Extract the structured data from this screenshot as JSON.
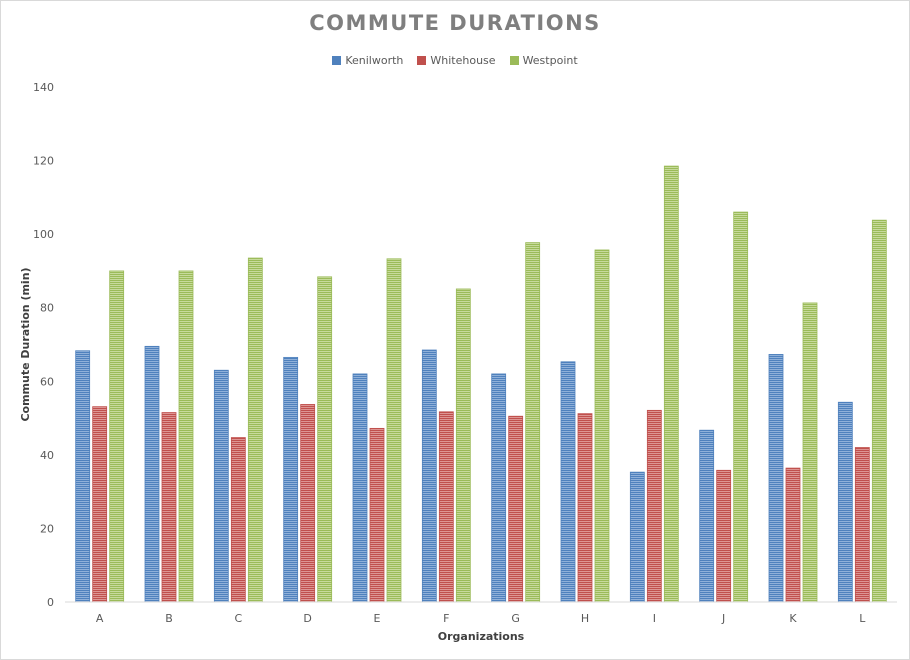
{
  "colors": {
    "Kenilworth": "#4f81bd",
    "Whitehouse": "#c0504d",
    "Westpoint": "#9bbb59"
  },
  "chart_data": {
    "type": "bar",
    "title": "COMMUTE DURATIONS",
    "xlabel": "Organizations",
    "ylabel": "Commute Duration (min)",
    "ylim": [
      0,
      140
    ],
    "yticks": [
      0,
      20,
      40,
      60,
      80,
      100,
      120,
      140
    ],
    "grid": false,
    "legend_position": "top",
    "categories": [
      "A",
      "B",
      "C",
      "D",
      "E",
      "F",
      "G",
      "H",
      "I",
      "J",
      "K",
      "L"
    ],
    "series": [
      {
        "name": "Kenilworth",
        "values": [
          68.3,
          69.5,
          63,
          66.5,
          62,
          68.5,
          62,
          65.3,
          35.3,
          46.7,
          67.3,
          54.3
        ]
      },
      {
        "name": "Whitehouse",
        "values": [
          53.1,
          51.5,
          44.7,
          53.7,
          47.2,
          51.7,
          50.5,
          51.2,
          52.1,
          35.8,
          36.4,
          42
        ]
      },
      {
        "name": "Westpoint",
        "values": [
          90,
          90,
          93.5,
          88.4,
          93.3,
          85.1,
          97.7,
          95.7,
          118.5,
          106,
          81.3,
          103.8
        ]
      }
    ]
  }
}
